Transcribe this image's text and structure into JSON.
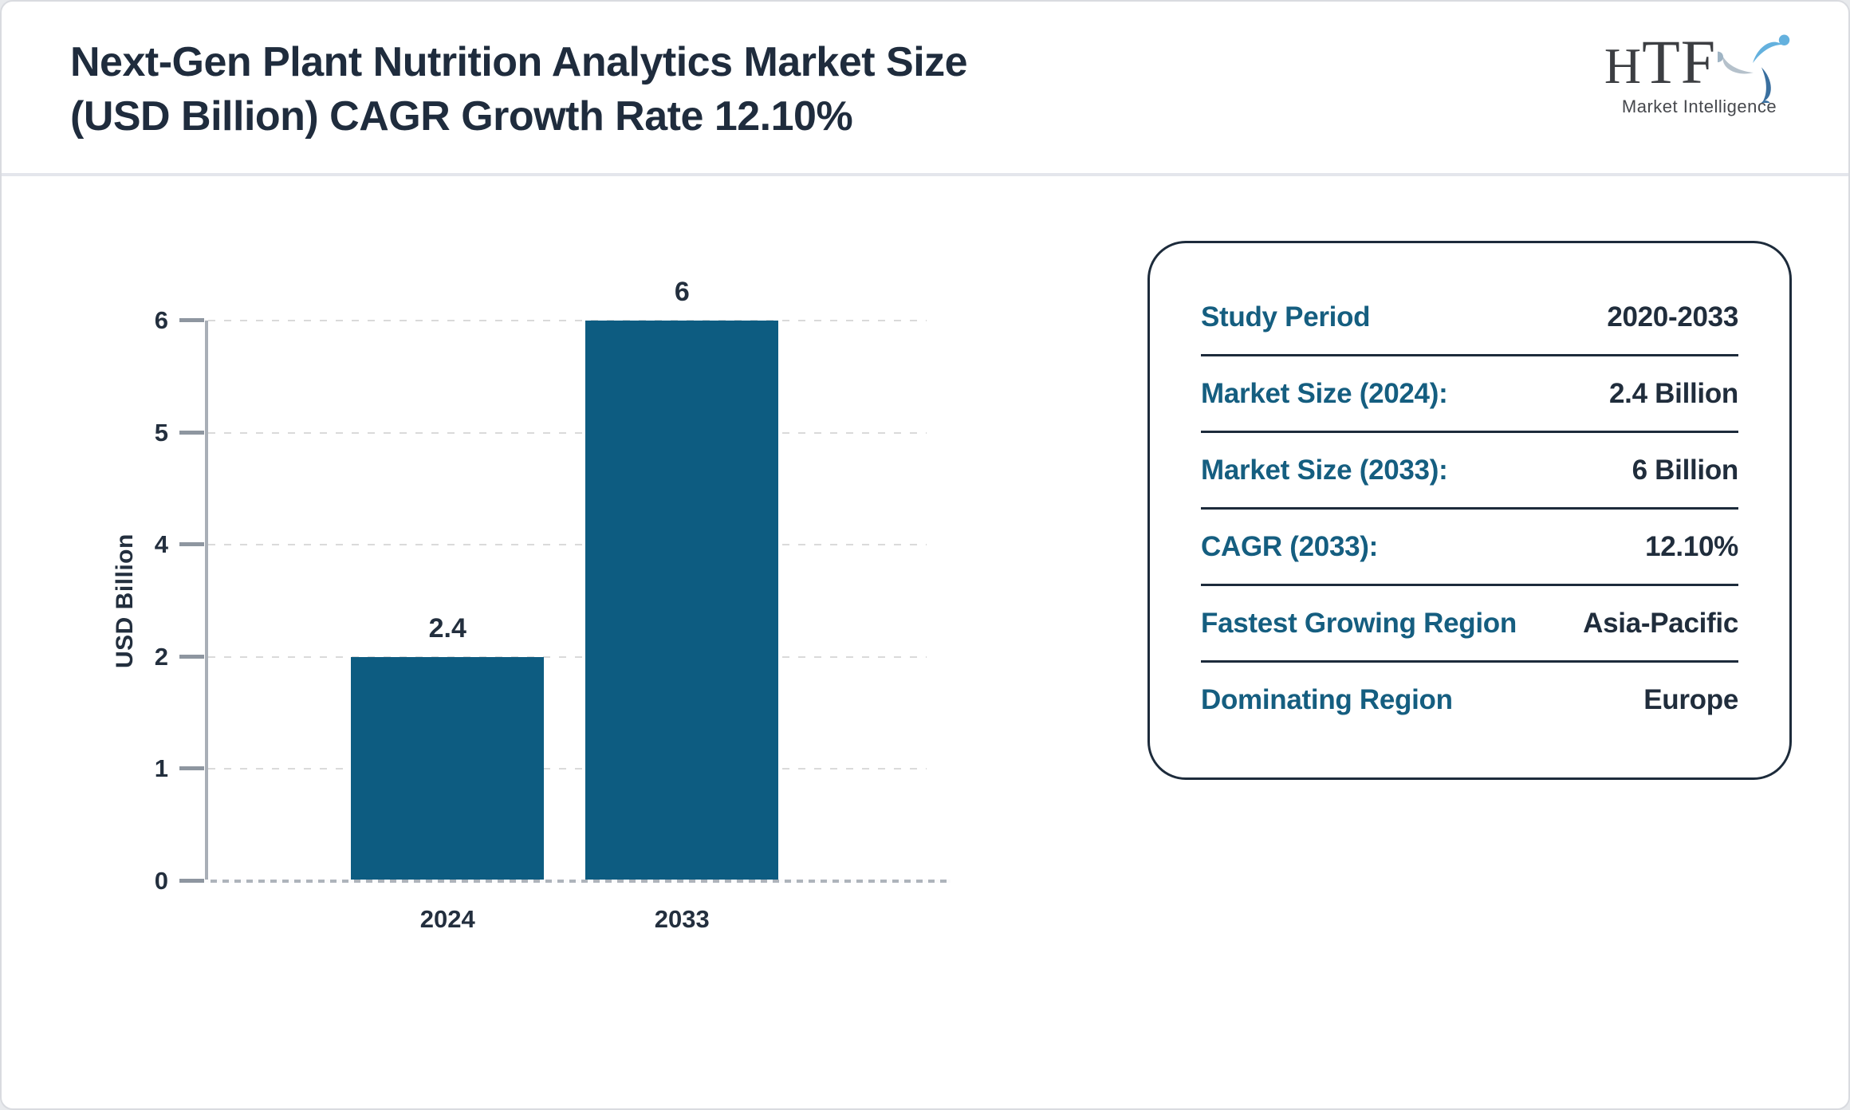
{
  "colors": {
    "bar": "#0d5c81",
    "accent_teal": "#155e80",
    "title_navy": "#1f2c3d",
    "card_border": "#1d2b3b",
    "page_background": "#e8eaed"
  },
  "header": {
    "title_line1": "Next-Gen Plant Nutrition Analytics Market Size",
    "title_line2": "(USD Billion) CAGR Growth Rate 12.10%",
    "logo_text": "HTF",
    "logo_subtext": "Market Intelligence",
    "logo_mark": "three-people-swirl"
  },
  "chart_data": {
    "type": "bar",
    "title": "Next-Gen Plant Nutrition Analytics Market Size (USD Billion) CAGR Growth Rate 12.10%",
    "categories": [
      "2024",
      "2033"
    ],
    "values": [
      2.4,
      6
    ],
    "bar_labels": [
      "2.4",
      "6"
    ],
    "xlabel": "",
    "ylabel": "USD Billion",
    "ylim": [
      0,
      6
    ],
    "ytick_labels": [
      "0",
      "1",
      "2",
      "4",
      "5",
      "6"
    ],
    "grid": "horizontal-dashed",
    "legend": "none",
    "bar_color": "#0d5c81"
  },
  "summary_card": {
    "rows": [
      {
        "label": "Study Period",
        "value": "2020-2033"
      },
      {
        "label": "Market Size (2024):",
        "value": "2.4 Billion"
      },
      {
        "label": "Market Size (2033):",
        "value": "6 Billion"
      },
      {
        "label": "CAGR (2033):",
        "value": "12.10%"
      },
      {
        "label": "Fastest Growing Region",
        "value": "Asia-Pacific"
      },
      {
        "label": "Dominating Region",
        "value": "Europe"
      }
    ]
  }
}
